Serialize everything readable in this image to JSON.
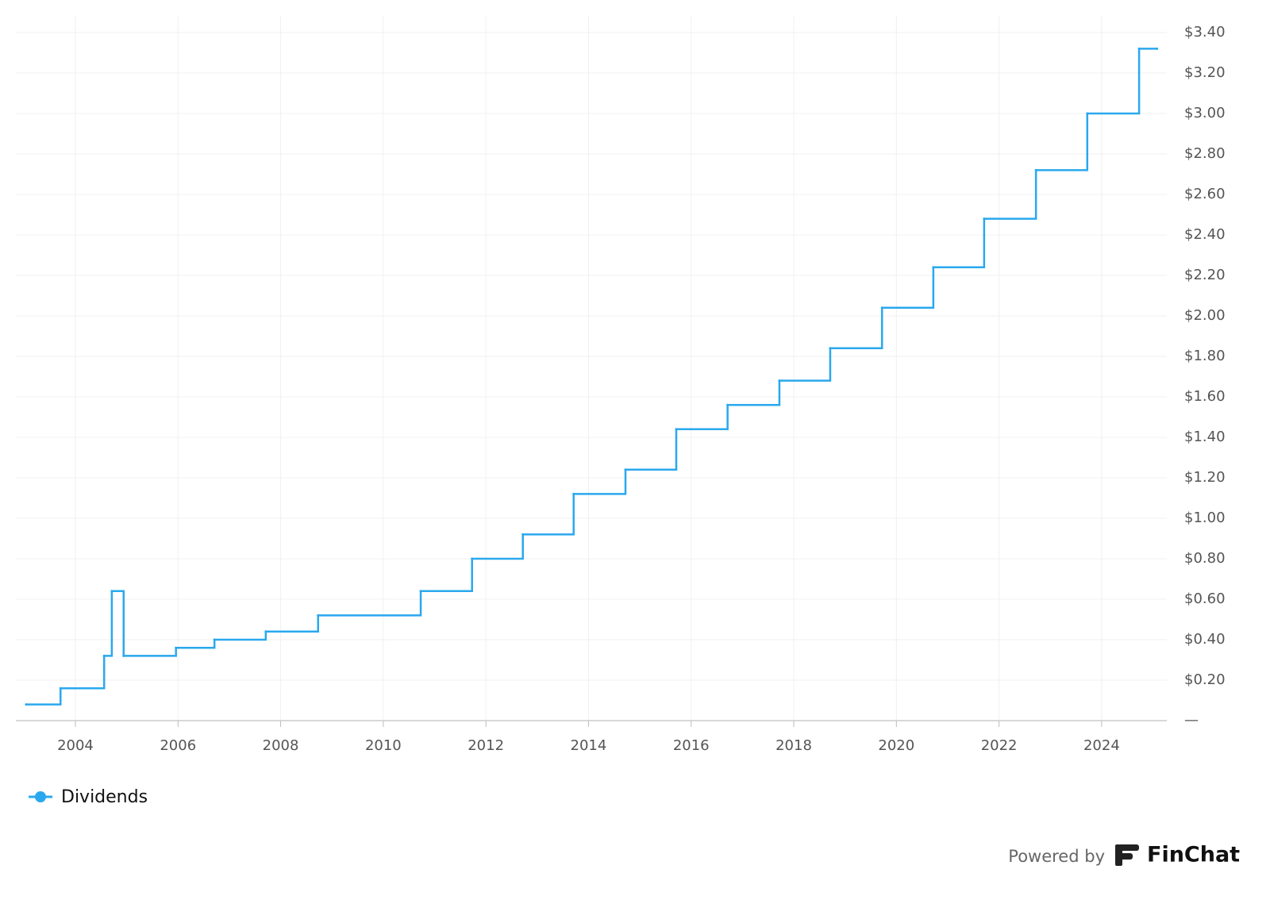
{
  "chart_data": {
    "type": "step-line",
    "x": [
      2003.04,
      2003.71,
      2004.56,
      2004.71,
      2004.94,
      2005.96,
      2006.71,
      2007.71,
      2008.73,
      2010.73,
      2011.73,
      2012.72,
      2013.71,
      2014.72,
      2015.71,
      2016.71,
      2017.72,
      2018.71,
      2019.72,
      2020.72,
      2021.71,
      2022.72,
      2023.72,
      2024.73,
      2025.08
    ],
    "series": [
      {
        "name": "Dividends",
        "color": "#2aa8ee",
        "values": [
          0.08,
          0.16,
          0.32,
          0.64,
          0.32,
          0.36,
          0.4,
          0.44,
          0.52,
          0.64,
          0.8,
          0.92,
          1.12,
          1.24,
          1.44,
          1.56,
          1.68,
          1.84,
          2.04,
          2.24,
          2.48,
          2.72,
          3.0,
          3.32,
          3.32
        ]
      }
    ],
    "xlim": [
      2002.84,
      2025.27
    ],
    "xticks": [
      2004,
      2006,
      2008,
      2010,
      2012,
      2014,
      2016,
      2018,
      2020,
      2022,
      2024
    ],
    "ylim": [
      0,
      3.4
    ],
    "yticks": [
      {
        "value": 0,
        "label": "—"
      },
      {
        "value": 0.2,
        "label": "$0.20"
      },
      {
        "value": 0.4,
        "label": "$0.40"
      },
      {
        "value": 0.6,
        "label": "$0.60"
      },
      {
        "value": 0.8,
        "label": "$0.80"
      },
      {
        "value": 1.0,
        "label": "$1.00"
      },
      {
        "value": 1.2,
        "label": "$1.20"
      },
      {
        "value": 1.4,
        "label": "$1.40"
      },
      {
        "value": 1.6,
        "label": "$1.60"
      },
      {
        "value": 1.8,
        "label": "$1.80"
      },
      {
        "value": 2.0,
        "label": "$2.00"
      },
      {
        "value": 2.2,
        "label": "$2.20"
      },
      {
        "value": 2.4,
        "label": "$2.40"
      },
      {
        "value": 2.6,
        "label": "$2.60"
      },
      {
        "value": 2.8,
        "label": "$2.80"
      },
      {
        "value": 3.0,
        "label": "$3.00"
      },
      {
        "value": 3.2,
        "label": "$3.20"
      },
      {
        "value": 3.4,
        "label": "$3.40"
      }
    ],
    "grid": true,
    "legend": "bottom-left"
  },
  "footer": {
    "powered_by": "Powered by",
    "brand": "FinChat"
  }
}
